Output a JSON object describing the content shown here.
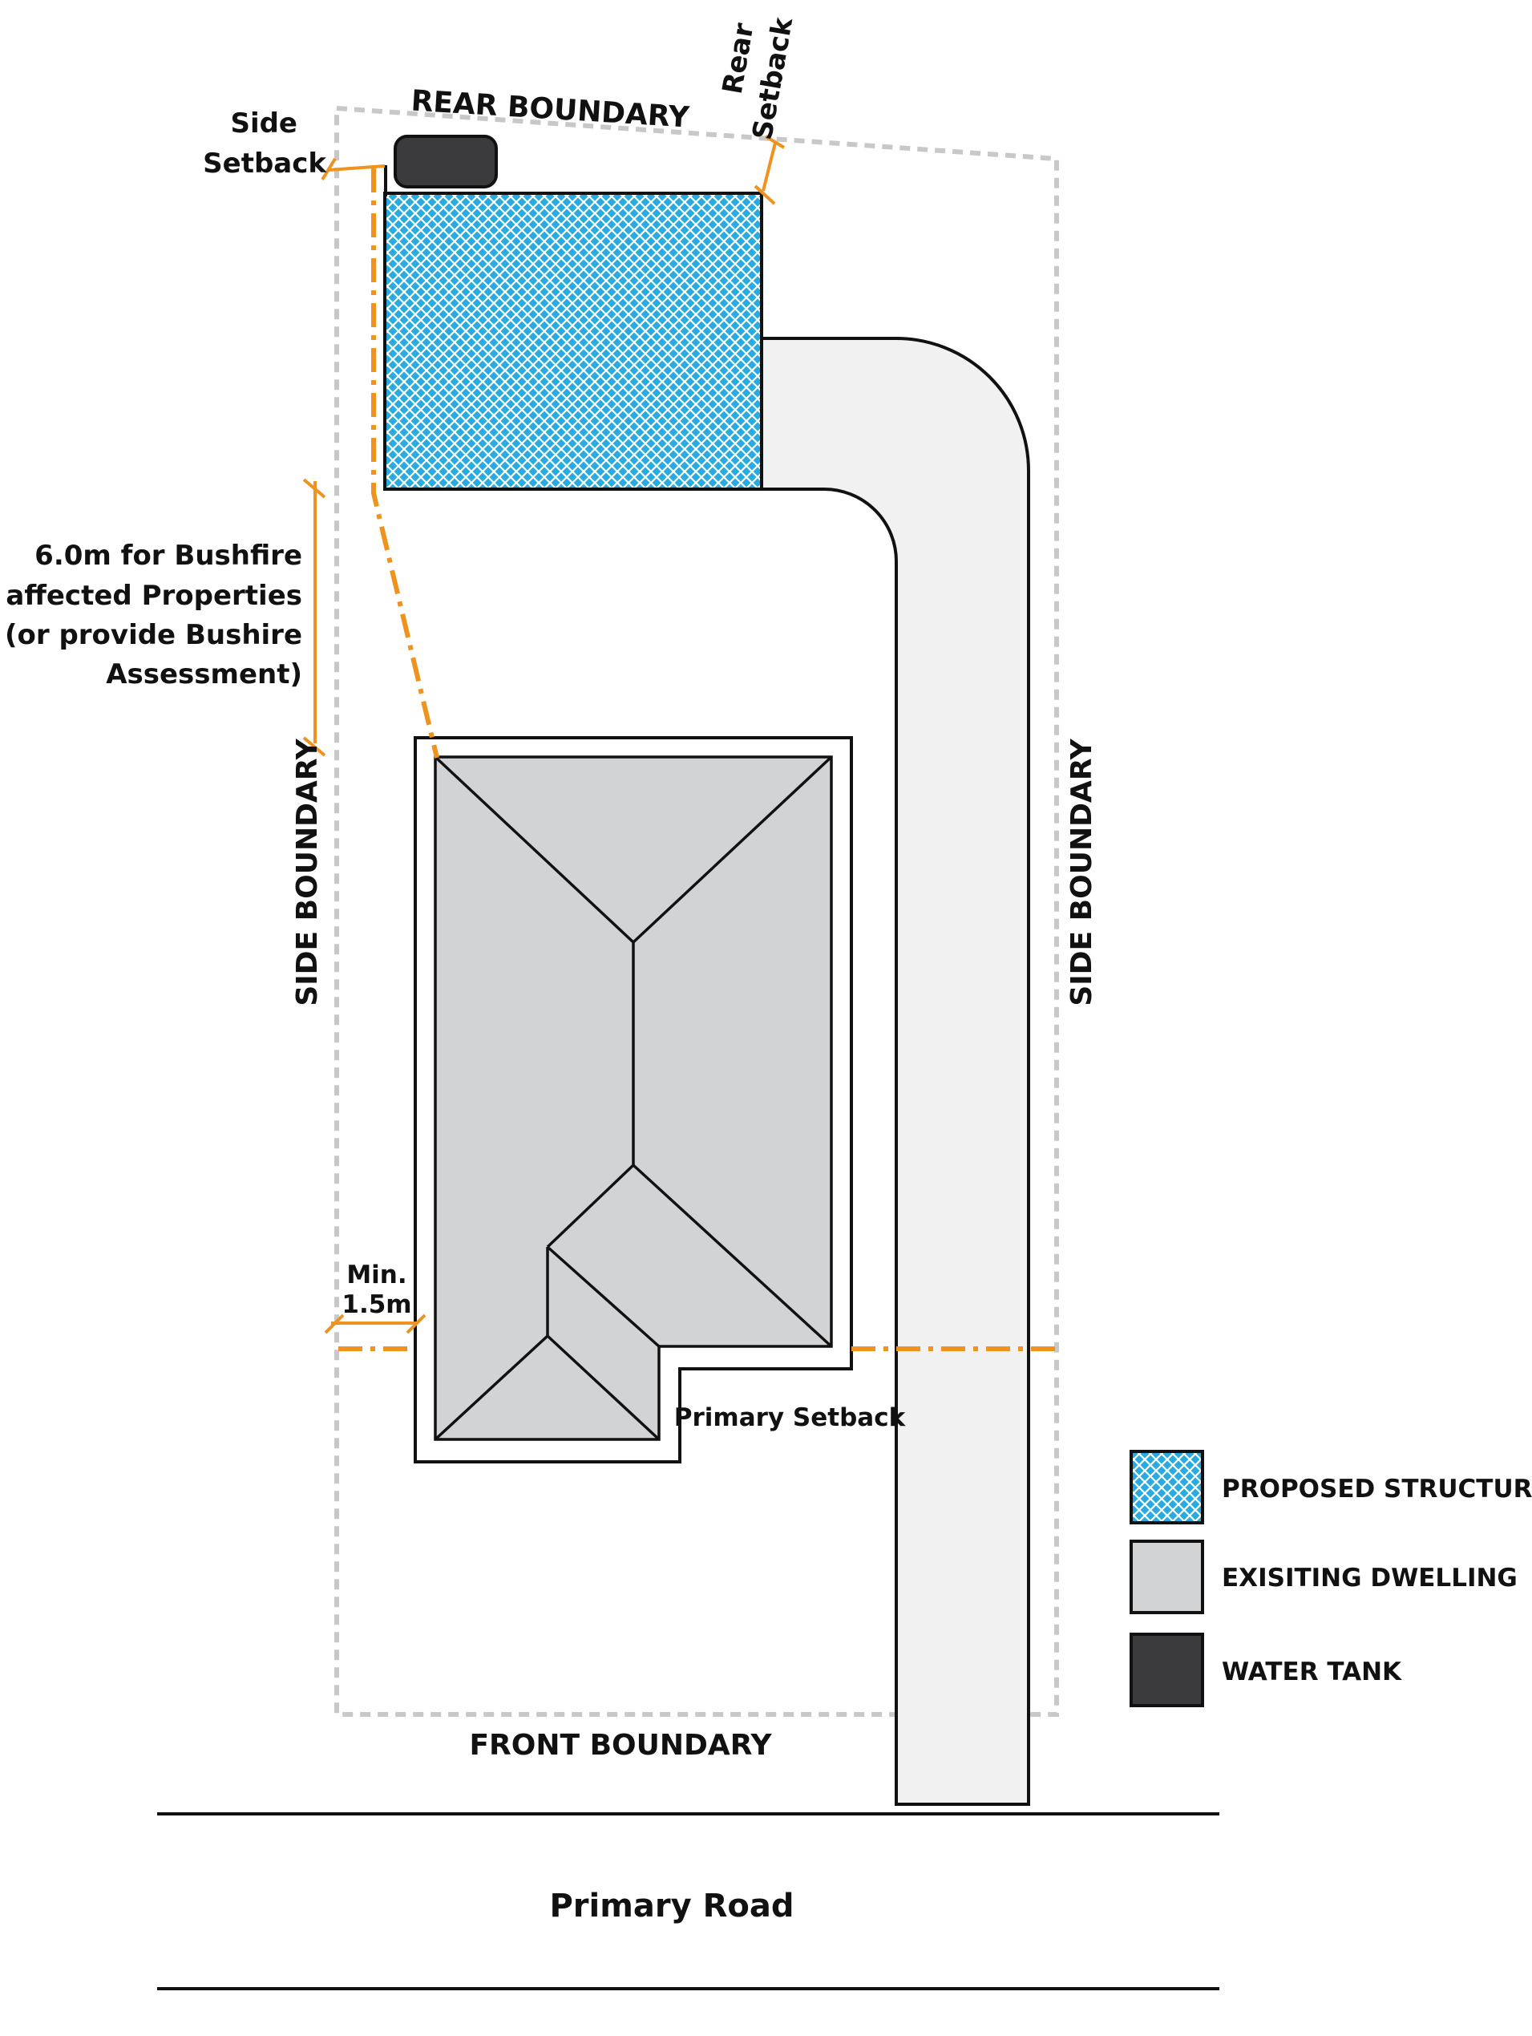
{
  "labels": {
    "rear_boundary": "REAR BOUNDARY",
    "front_boundary": "FRONT BOUNDARY",
    "side_boundary_left": "SIDE BOUNDARY",
    "side_boundary_right": "SIDE BOUNDARY",
    "side_setback": [
      "Side",
      "Setback"
    ],
    "rear_setback": [
      "Rear",
      "Setback"
    ],
    "bushfire_note": [
      "6.0m for Bushfire",
      "affected Properties",
      "(or provide Bushire",
      "Assessment)"
    ],
    "min_setback": [
      "Min.",
      "1.5m"
    ],
    "primary_setback": "Primary Setback",
    "primary_road": "Primary Road"
  },
  "legend": [
    {
      "label": "PROPOSED STRUCTURE",
      "swatch": "hatch-blue"
    },
    {
      "label": "EXISITING DWELLING",
      "swatch": "grey"
    },
    {
      "label": "WATER TANK",
      "swatch": "dark"
    }
  ],
  "colors": {
    "setback_orange": "#f0921e",
    "proposed_blue": "#29abe2",
    "existing_grey": "#d1d3d4",
    "driveway_grey": "#f1f1f2",
    "water_tank": "#3b3b3d",
    "boundary_dashed": "#c8c8c8"
  }
}
